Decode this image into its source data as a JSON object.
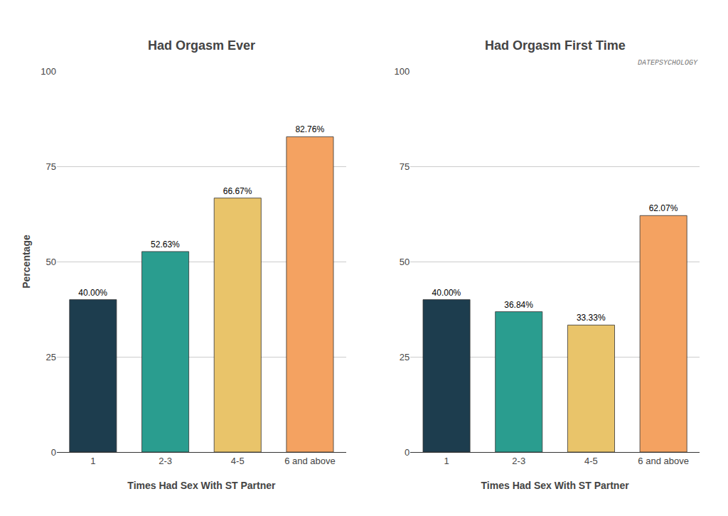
{
  "chart_data": [
    {
      "type": "bar",
      "title": "Had Orgasm Ever",
      "categories": [
        "1",
        "2-3",
        "4-5",
        "6 and above"
      ],
      "values": [
        40.0,
        52.63,
        66.67,
        82.76
      ],
      "value_labels": [
        "40.00%",
        "52.63%",
        "66.67%",
        "82.76%"
      ],
      "colors": [
        "#1D3D4E",
        "#2A9D8F",
        "#E9C46A",
        "#F4A261"
      ],
      "xlabel": "Times Had Sex With ST Partner",
      "ylabel": "Percentage",
      "ylim": [
        0,
        100
      ],
      "yticks": [
        0,
        25,
        50,
        75,
        100
      ],
      "grid": true,
      "data_labels": true
    },
    {
      "type": "bar",
      "title": "Had Orgasm First Time",
      "categories": [
        "1",
        "2-3",
        "4-5",
        "6 and above"
      ],
      "values": [
        40.0,
        36.84,
        33.33,
        62.07
      ],
      "value_labels": [
        "40.00%",
        "36.84%",
        "33.33%",
        "62.07%"
      ],
      "colors": [
        "#1D3D4E",
        "#2A9D8F",
        "#E9C46A",
        "#F4A261"
      ],
      "xlabel": "Times Had Sex With ST Partner",
      "ylim": [
        0,
        100
      ],
      "yticks": [
        0,
        25,
        50,
        75,
        100
      ],
      "grid": true,
      "data_labels": true,
      "annotations": [
        "DATEPSYCHOLOGY"
      ]
    }
  ]
}
